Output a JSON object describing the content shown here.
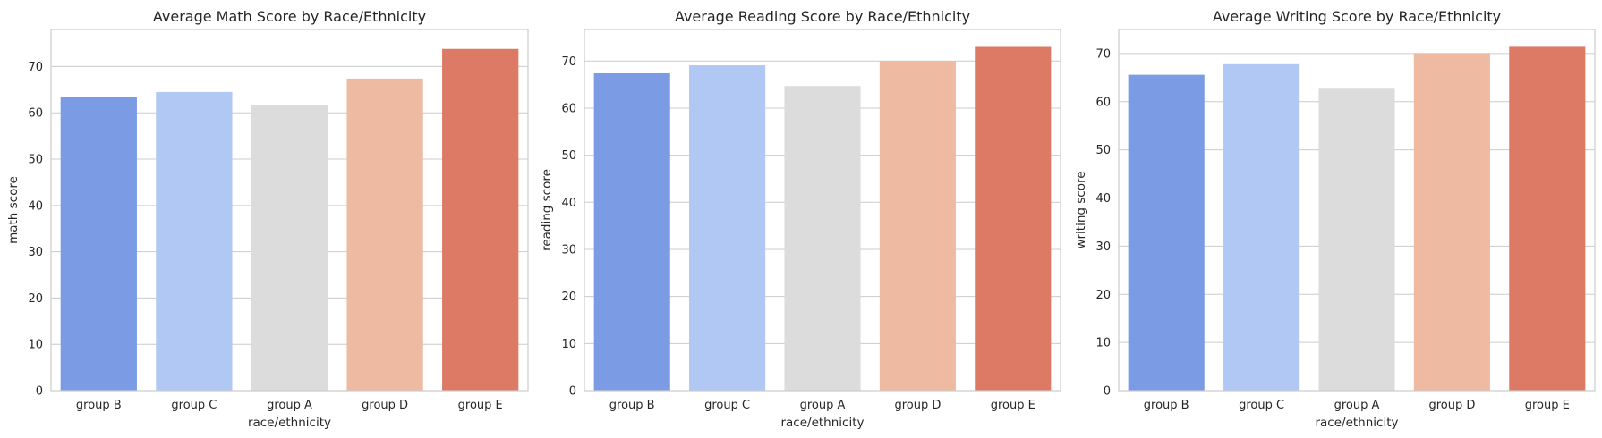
{
  "chart_data": [
    {
      "type": "bar",
      "title": "Average Math Score by Race/Ethnicity",
      "xlabel": "race/ethnicity",
      "ylabel": "math score",
      "categories": [
        "group B",
        "group C",
        "group A",
        "group D",
        "group E"
      ],
      "values": [
        63.5,
        64.5,
        61.6,
        67.4,
        73.8
      ],
      "ylim": [
        0,
        78
      ],
      "yticks": [
        0,
        10,
        20,
        30,
        40,
        50,
        60,
        70
      ],
      "grid": true
    },
    {
      "type": "bar",
      "title": "Average Reading Score by Race/Ethnicity",
      "xlabel": "race/ethnicity",
      "ylabel": "reading score",
      "categories": [
        "group B",
        "group C",
        "group A",
        "group D",
        "group E"
      ],
      "values": [
        67.4,
        69.1,
        64.7,
        70.0,
        73.0
      ],
      "ylim": [
        0,
        76.7
      ],
      "yticks": [
        0,
        10,
        20,
        30,
        40,
        50,
        60,
        70
      ],
      "grid": true
    },
    {
      "type": "bar",
      "title": "Average Writing Score by Race/Ethnicity",
      "xlabel": "race/ethnicity",
      "ylabel": "writing score",
      "categories": [
        "group B",
        "group C",
        "group A",
        "group D",
        "group E"
      ],
      "values": [
        65.6,
        67.8,
        62.7,
        70.1,
        71.4
      ],
      "ylim": [
        0,
        75
      ],
      "yticks": [
        0,
        10,
        20,
        30,
        40,
        50,
        60,
        70
      ],
      "grid": true
    }
  ],
  "palette": [
    "#7b9be4",
    "#b1c8f5",
    "#dcdcdc",
    "#eebba2",
    "#dc7a65"
  ]
}
